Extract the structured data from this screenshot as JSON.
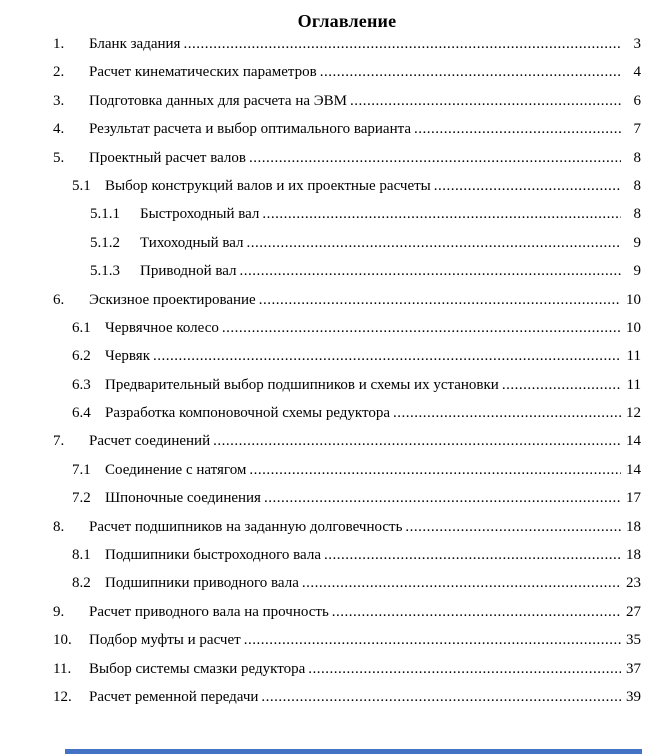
{
  "page": {
    "title": "Оглавление"
  },
  "colors": {
    "bottom_strip": "#4472c4"
  },
  "toc": {
    "entries": [
      {
        "level": 1,
        "num": "1.",
        "title": "Бланк задания",
        "page": "3"
      },
      {
        "level": 1,
        "num": "2.",
        "title": "Расчет кинематических параметров",
        "page": "4"
      },
      {
        "level": 1,
        "num": "3.",
        "title": "Подготовка данных для расчета на ЭВМ",
        "page": "6"
      },
      {
        "level": 1,
        "num": "4.",
        "title": "Результат расчета и выбор оптимального варианта",
        "page": "7"
      },
      {
        "level": 1,
        "num": "5.",
        "title": "Проектный расчет валов",
        "page": "8"
      },
      {
        "level": 2,
        "num": "5.1",
        "title": "Выбор конструкций валов и их проектные расчеты",
        "page": "8"
      },
      {
        "level": 3,
        "num": "5.1.1",
        "title": "Быстроходный вал",
        "page": "8"
      },
      {
        "level": 3,
        "num": "5.1.2",
        "title": "Тихоходный вал",
        "page": "9"
      },
      {
        "level": 3,
        "num": "5.1.3",
        "title": "Приводной вал",
        "page": "9"
      },
      {
        "level": 1,
        "num": "6.",
        "title": "Эскизное проектирование",
        "page": "10"
      },
      {
        "level": 2,
        "num": "6.1",
        "title": "Червячное колесо",
        "page": "10"
      },
      {
        "level": 2,
        "num": "6.2",
        "title": "Червяк",
        "page": "11"
      },
      {
        "level": 2,
        "num": "6.3",
        "title": "Предварительный выбор подшипников и схемы их установки",
        "page": "11"
      },
      {
        "level": 2,
        "num": "6.4",
        "title": "Разработка компоновочной схемы редуктора",
        "page": "12"
      },
      {
        "level": 1,
        "num": "7.",
        "title": "Расчет соединений",
        "page": "14"
      },
      {
        "level": 2,
        "num": "7.1",
        "title": "Соединение с натягом",
        "page": "14"
      },
      {
        "level": 2,
        "num": "7.2",
        "title": "Шпоночные соединения",
        "page": "17"
      },
      {
        "level": 1,
        "num": "8.",
        "title": "Расчет подшипников на заданную долговечность",
        "page": "18"
      },
      {
        "level": 2,
        "num": "8.1",
        "title": "Подшипники быстроходного вала",
        "page": "18"
      },
      {
        "level": 2,
        "num": "8.2",
        "title": "Подшипники приводного вала",
        "page": "23"
      },
      {
        "level": 1,
        "num": "9.",
        "title": "Расчет приводного вала на прочность",
        "page": "27"
      },
      {
        "level": 1,
        "num": "10.",
        "title": "Подбор муфты и расчет",
        "page": "35"
      },
      {
        "level": 1,
        "num": "11.",
        "title": "Выбор системы смазки редуктора",
        "page": "37"
      },
      {
        "level": 1,
        "num": "12.",
        "title": "Расчет ременной передачи",
        "page": "39"
      }
    ]
  }
}
